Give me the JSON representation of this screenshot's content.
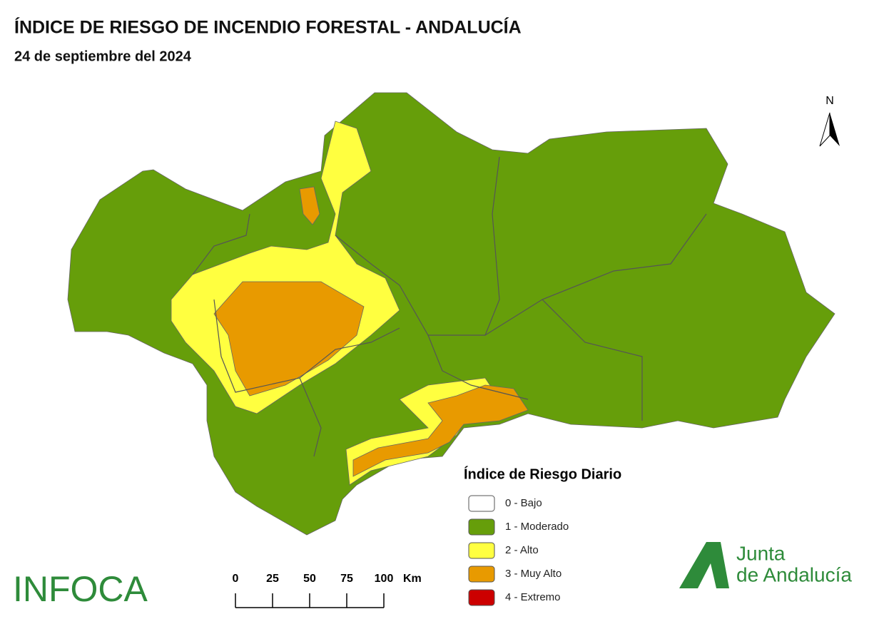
{
  "header": {
    "title": "ÍNDICE DE RIESGO DE INCENDIO FORESTAL - ANDALUCÍA",
    "subtitle": "24 de septiembre del 2024"
  },
  "north": "N",
  "legend": {
    "title": "Índice de Riesgo Diario",
    "items": [
      {
        "label": "0 - Bajo",
        "color": "#ffffff"
      },
      {
        "label": "1 - Moderado",
        "color": "#669e0a"
      },
      {
        "label": "2 - Alto",
        "color": "#ffff40"
      },
      {
        "label": "3 - Muy Alto",
        "color": "#e89a00"
      },
      {
        "label": "4 - Extremo",
        "color": "#cc0000"
      }
    ]
  },
  "scale": {
    "ticks": [
      0,
      25,
      50,
      75,
      100
    ],
    "unit": "Km"
  },
  "logos": {
    "infoca": "INFOCA",
    "junta_line1": "Junta",
    "junta_line2": "de Andalucía"
  }
}
